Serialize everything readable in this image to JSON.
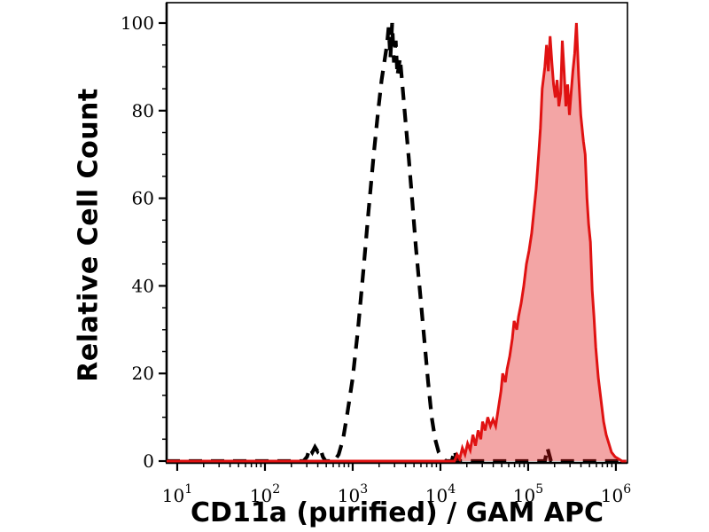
{
  "figure": {
    "background_color": "#ffffff",
    "frame_color": "#000000"
  },
  "chart_data": {
    "type": "line",
    "subtype": "flow-cytometry-histogram-overlay",
    "title": "",
    "xlabel": "CD11a (purified) / GAM APC",
    "ylabel": "Relative Cell Count",
    "x_scale": "log10",
    "xlim_log10": [
      0.879,
      6.132
    ],
    "ylim": [
      0,
      100
    ],
    "grid": false,
    "legend": "none",
    "y_ticks": [
      0,
      20,
      40,
      60,
      80,
      100
    ],
    "y_minor_step": 5,
    "x_ticks": [
      {
        "log10": 1,
        "base": "10",
        "exponent": "1"
      },
      {
        "log10": 2,
        "base": "10",
        "exponent": "2"
      },
      {
        "log10": 3,
        "base": "10",
        "exponent": "3"
      },
      {
        "log10": 4,
        "base": "10",
        "exponent": "4"
      },
      {
        "log10": 5,
        "base": "10",
        "exponent": "5"
      },
      {
        "log10": 6,
        "base": "10",
        "exponent": "6"
      }
    ],
    "series": [
      {
        "name": "negative control (dashed black)",
        "line_style": "dashed",
        "stroke_color": "#000000",
        "stroke_width": 4.2,
        "dash_pattern": [
          15,
          10
        ],
        "fill_color": "none",
        "points_log10x_y": [
          [
            0.879,
            0
          ],
          [
            2.44,
            0
          ],
          [
            2.48,
            1
          ],
          [
            2.51,
            3
          ],
          [
            2.54,
            2
          ],
          [
            2.57,
            3.2
          ],
          [
            2.6,
            2.2
          ],
          [
            2.63,
            3
          ],
          [
            2.66,
            1
          ],
          [
            2.69,
            0
          ],
          [
            2.79,
            0
          ],
          [
            2.84,
            1.5
          ],
          [
            2.89,
            5
          ],
          [
            2.94,
            11
          ],
          [
            3.0,
            19
          ],
          [
            3.06,
            30
          ],
          [
            3.12,
            43
          ],
          [
            3.18,
            57
          ],
          [
            3.24,
            70
          ],
          [
            3.29,
            80
          ],
          [
            3.33,
            87
          ],
          [
            3.36,
            91
          ],
          [
            3.39,
            95
          ],
          [
            3.41,
            99
          ],
          [
            3.43,
            92
          ],
          [
            3.45,
            100
          ],
          [
            3.47,
            91
          ],
          [
            3.49,
            96
          ],
          [
            3.51,
            88
          ],
          [
            3.54,
            92
          ],
          [
            3.57,
            85
          ],
          [
            3.6,
            78
          ],
          [
            3.64,
            69
          ],
          [
            3.68,
            59
          ],
          [
            3.72,
            49
          ],
          [
            3.77,
            38
          ],
          [
            3.82,
            27
          ],
          [
            3.86,
            18
          ],
          [
            3.9,
            10
          ],
          [
            3.94,
            5
          ],
          [
            3.98,
            2
          ],
          [
            4.02,
            1
          ],
          [
            4.06,
            0
          ],
          [
            4.13,
            0
          ],
          [
            4.16,
            2.5
          ],
          [
            4.19,
            0
          ],
          [
            5.19,
            0
          ],
          [
            5.22,
            3
          ],
          [
            5.26,
            0
          ],
          [
            6.12,
            0
          ]
        ]
      },
      {
        "name": "CD11a purified / GAM APC stained (red filled)",
        "line_style": "solid",
        "stroke_color": "#e01212",
        "stroke_width": 3,
        "dash_pattern": null,
        "fill_color": "rgba(224,18,18,0.38)",
        "points_log10x_y": [
          [
            0.879,
            0
          ],
          [
            4.16,
            0
          ],
          [
            4.19,
            1.5
          ],
          [
            4.22,
            0.5
          ],
          [
            4.25,
            3
          ],
          [
            4.28,
            1.5
          ],
          [
            4.31,
            4
          ],
          [
            4.34,
            2.5
          ],
          [
            4.37,
            6
          ],
          [
            4.4,
            3.5
          ],
          [
            4.43,
            7
          ],
          [
            4.46,
            5
          ],
          [
            4.48,
            9
          ],
          [
            4.51,
            7
          ],
          [
            4.54,
            10
          ],
          [
            4.57,
            8
          ],
          [
            4.6,
            9.5
          ],
          [
            4.63,
            8
          ],
          [
            4.66,
            12
          ],
          [
            4.69,
            16
          ],
          [
            4.71,
            20
          ],
          [
            4.74,
            18
          ],
          [
            4.76,
            21
          ],
          [
            4.79,
            24
          ],
          [
            4.82,
            28
          ],
          [
            4.84,
            32
          ],
          [
            4.87,
            30
          ],
          [
            4.89,
            33
          ],
          [
            4.92,
            36
          ],
          [
            4.95,
            40
          ],
          [
            4.98,
            45
          ],
          [
            5.01,
            48
          ],
          [
            5.04,
            52
          ],
          [
            5.06,
            56
          ],
          [
            5.09,
            62
          ],
          [
            5.12,
            70
          ],
          [
            5.14,
            76
          ],
          [
            5.16,
            85
          ],
          [
            5.19,
            90
          ],
          [
            5.21,
            95
          ],
          [
            5.23,
            89
          ],
          [
            5.25,
            97
          ],
          [
            5.27,
            91
          ],
          [
            5.29,
            86
          ],
          [
            5.31,
            83
          ],
          [
            5.33,
            87
          ],
          [
            5.35,
            81
          ],
          [
            5.37,
            84
          ],
          [
            5.39,
            96
          ],
          [
            5.41,
            89
          ],
          [
            5.43,
            81
          ],
          [
            5.45,
            86
          ],
          [
            5.47,
            79
          ],
          [
            5.49,
            84
          ],
          [
            5.51,
            89
          ],
          [
            5.53,
            93
          ],
          [
            5.55,
            100
          ],
          [
            5.575,
            88
          ],
          [
            5.6,
            79
          ],
          [
            5.63,
            73
          ],
          [
            5.65,
            70
          ],
          [
            5.67,
            60
          ],
          [
            5.69,
            54
          ],
          [
            5.71,
            50
          ],
          [
            5.73,
            39
          ],
          [
            5.75,
            33
          ],
          [
            5.77,
            26
          ],
          [
            5.8,
            19
          ],
          [
            5.83,
            14
          ],
          [
            5.86,
            9
          ],
          [
            5.89,
            6
          ],
          [
            5.92,
            4
          ],
          [
            5.95,
            2
          ],
          [
            5.99,
            1
          ],
          [
            6.03,
            0.5
          ],
          [
            6.07,
            0
          ],
          [
            6.12,
            0
          ]
        ]
      }
    ]
  }
}
